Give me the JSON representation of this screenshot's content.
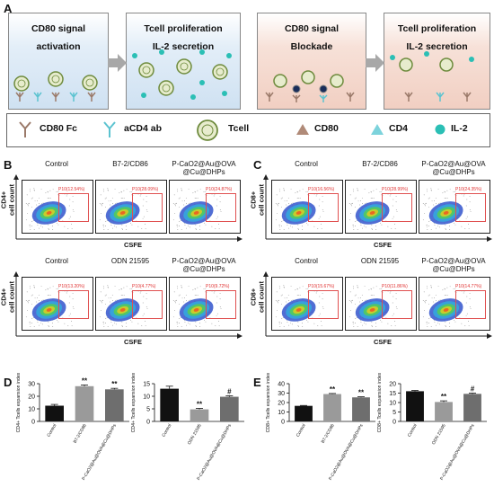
{
  "panel_a": {
    "label": "A",
    "wells": [
      {
        "line1": "CD80 signal",
        "line2": "activation"
      },
      {
        "line1": "Tcell proliferation",
        "line2": "IL-2 secretion"
      },
      {
        "line1": "CD80 signal",
        "line2": "Blockade"
      },
      {
        "line1": "Tcell proliferation",
        "line2": "IL-2 secretion"
      }
    ],
    "legend": [
      "CD80 Fc",
      "aCD4 ab",
      "Tcell",
      "CD80",
      "CD4",
      "IL-2"
    ],
    "colors": {
      "cd80fc": "#9b7a6a",
      "acd4": "#5cc3d0",
      "tcell_outer": "#6e8b3d",
      "tcell_fill": "#e7eccd",
      "cd80": "#b08a78",
      "cd4": "#7dd3dc",
      "il2": "#2bbfb5"
    }
  },
  "panel_b": {
    "label": "B",
    "top_titles": [
      "Control",
      "B7-2/CD86",
      "P-CaO2@Au@OVA\n@Cu@DHPs"
    ],
    "top_gates": [
      "P10(12.54%)",
      "P10(28.09%)",
      "P10(24.87%)"
    ],
    "bottom_titles": [
      "Control",
      "ODN 21595",
      "P-CaO2@Au@OVA\n@Cu@DHPs"
    ],
    "bottom_gates": [
      "P10(13.20%)",
      "P10(4.77%)",
      "P10(9.72%)"
    ],
    "ylabel_top": "CD4+",
    "ylabel_bottom": "cell count",
    "xlabel": "CSFE"
  },
  "panel_c": {
    "label": "C",
    "top_titles": [
      "Control",
      "B7-2/CD86",
      "P-CaO2@Au@OVA\n@Cu@DHPs"
    ],
    "top_gates": [
      "P10(16.56%)",
      "P10(28.99%)",
      "P10(24.35%)"
    ],
    "bottom_titles": [
      "Control",
      "ODN 21595",
      "P-CaO2@Au@OVA\n@Cu@DHPs"
    ],
    "bottom_gates": [
      "P10(15.67%)",
      "P10(11.86%)",
      "P10(14.77%)"
    ],
    "ylabel_top": "CD8+",
    "ylabel_bottom": "cell count",
    "xlabel": "CSFE"
  },
  "panel_d": {
    "label": "D"
  },
  "panel_e": {
    "label": "E"
  },
  "chart_data": [
    {
      "type": "bar",
      "panel": "D-left",
      "ylabel": "CD4+ Tcells expansion index",
      "categories": [
        "Control",
        "B7-2/CD86",
        "P-CaO2@Au@OVA@Cu@DHPs"
      ],
      "values": [
        12.5,
        28,
        25.5
      ],
      "errors": [
        1,
        1,
        0.8
      ],
      "sig": [
        "",
        "**",
        "**"
      ],
      "ylim": [
        0,
        30
      ],
      "yticks": [
        0,
        10,
        20,
        30
      ],
      "colors": [
        "#111111",
        "#9a9a9a",
        "#6e6e6e"
      ]
    },
    {
      "type": "bar",
      "panel": "D-right",
      "ylabel": "CD4+ Tcells expansion index",
      "categories": [
        "Control",
        "ODN 21595",
        "P-CaO2@Au@OVA@Cu@DHPs"
      ],
      "values": [
        13,
        4.8,
        9.8
      ],
      "errors": [
        1,
        0.4,
        0.4
      ],
      "sig": [
        "",
        "**",
        "#"
      ],
      "ylim": [
        0,
        15
      ],
      "yticks": [
        0,
        5,
        10,
        15
      ],
      "colors": [
        "#111111",
        "#9a9a9a",
        "#6e6e6e"
      ]
    },
    {
      "type": "bar",
      "panel": "E-left",
      "ylabel": "CD8+ Tcells expansion index",
      "categories": [
        "Control",
        "B7-2/CD86",
        "P-CaO2@Au@OVA@Cu@DHPs"
      ],
      "values": [
        16.5,
        29,
        25.5
      ],
      "errors": [
        0.4,
        0.6,
        0.6
      ],
      "sig": [
        "",
        "**",
        "**"
      ],
      "ylim": [
        0,
        40
      ],
      "yticks": [
        0,
        10,
        20,
        30,
        40
      ],
      "colors": [
        "#111111",
        "#9a9a9a",
        "#6e6e6e"
      ]
    },
    {
      "type": "bar",
      "panel": "E-right",
      "ylabel": "CD8+ Tcells expansion index",
      "categories": [
        "Control",
        "ODN 21595",
        "P-CaO2@Au@OVA@Cu@DHPs"
      ],
      "values": [
        16,
        10.3,
        14.6
      ],
      "errors": [
        0.4,
        0.6,
        0.4
      ],
      "sig": [
        "",
        "**",
        "#"
      ],
      "ylim": [
        0,
        20
      ],
      "yticks": [
        0,
        5,
        10,
        15,
        20
      ],
      "colors": [
        "#111111",
        "#9a9a9a",
        "#6e6e6e"
      ]
    }
  ]
}
